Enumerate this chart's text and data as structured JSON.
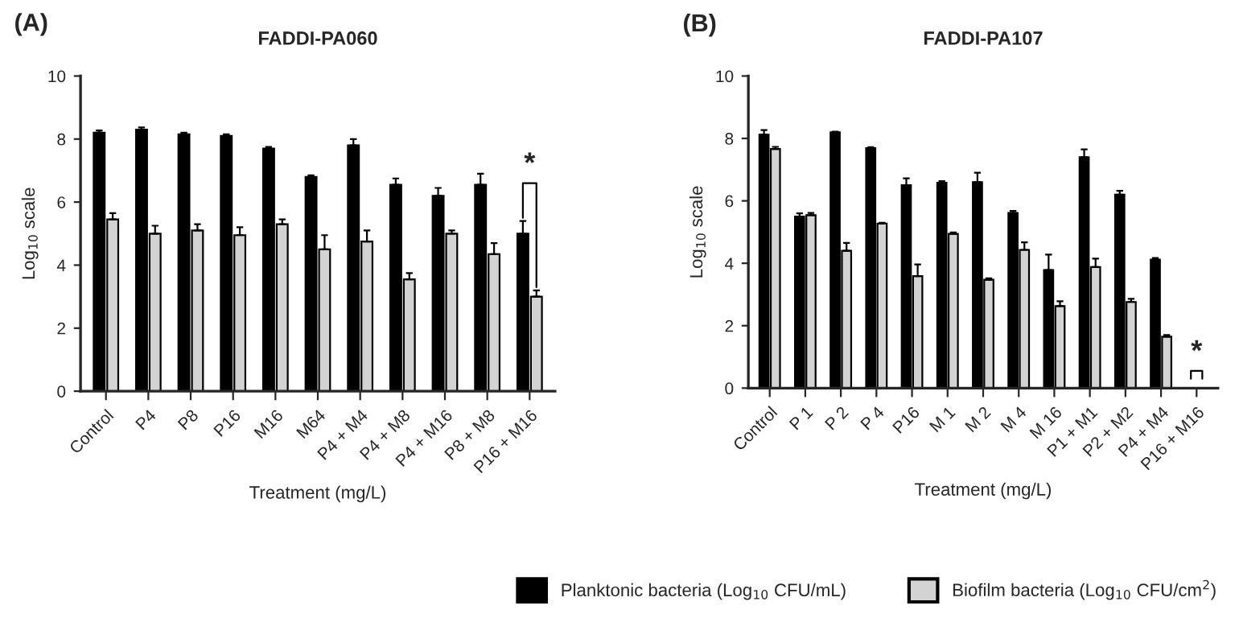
{
  "chart_data": [
    {
      "type": "bar",
      "title": "FADDI-PA060",
      "xlabel": "Treatment (mg/L)",
      "ylabel": "Log$_{10}$ scale",
      "categories": [
        "Control",
        "P4",
        "P8",
        "P16",
        "M16",
        "M64",
        "P4 + M4",
        "P4 + M8",
        "P4 + M16",
        "P8 + M8",
        "P16 + M16"
      ],
      "series": [
        {
          "name": "Planktonic bacteria (Log$_{10}$ CFU/mL)",
          "color": "#000000",
          "values": [
            8.2,
            8.3,
            8.15,
            8.1,
            7.7,
            6.8,
            7.8,
            6.55,
            6.2,
            6.55,
            5.0
          ],
          "errors": [
            [
              8.2,
              8.27
            ],
            [
              8.3,
              8.37
            ],
            [
              8.15,
              8.2
            ],
            [
              8.1,
              8.15
            ],
            [
              7.7,
              7.75
            ],
            [
              6.8,
              6.85
            ],
            [
              7.8,
              8.0
            ],
            [
              6.55,
              6.75
            ],
            [
              6.2,
              6.45
            ],
            [
              6.55,
              6.9
            ],
            [
              5.0,
              5.4
            ]
          ]
        },
        {
          "name": "Biofilm bacteria (Log$_{10}$ CFU/cm$^{2}$)",
          "color": "#d3d3d3",
          "values": [
            5.45,
            5.0,
            5.1,
            4.95,
            5.3,
            4.5,
            4.75,
            3.55,
            5.0,
            4.35,
            3.0
          ],
          "errors": [
            [
              5.45,
              5.65
            ],
            [
              5.0,
              5.25
            ],
            [
              5.1,
              5.3
            ],
            [
              4.95,
              5.2
            ],
            [
              5.3,
              5.45
            ],
            [
              4.5,
              4.95
            ],
            [
              4.75,
              5.1
            ],
            [
              3.55,
              3.75
            ],
            [
              5.0,
              5.1
            ],
            [
              4.35,
              4.7
            ],
            [
              3.0,
              3.2
            ]
          ]
        }
      ],
      "ylim": [
        0,
        10
      ],
      "yticks": [
        0,
        2,
        4,
        6,
        8,
        10
      ],
      "grid": false,
      "legend": "bottom",
      "annotations": [
        "(A)",
        "*"
      ]
    },
    {
      "type": "bar",
      "title": "FADDI-PA107",
      "xlabel": "Treatment (mg/L)",
      "ylabel": "Log$_{10}$ scale",
      "categories": [
        "Control",
        "P 1",
        "P 2",
        "P 4",
        "P16",
        "M 1",
        "M 2",
        "M 4",
        "M 16",
        "P1 + M1",
        "P2 + M2",
        "P4 + M4",
        "P16 + M16"
      ],
      "series": [
        {
          "color": "#000000",
          "values": [
            8.12,
            5.5,
            8.2,
            7.69,
            6.5,
            6.58,
            6.6,
            5.61,
            3.78,
            7.4,
            6.2,
            4.12,
            0
          ],
          "errors": [
            [
              8.12,
              8.27
            ],
            [
              5.5,
              5.6
            ],
            [
              8.2,
              8.22
            ],
            [
              7.69,
              7.72
            ],
            [
              6.5,
              6.72
            ],
            [
              6.58,
              6.63
            ],
            [
              6.6,
              6.9
            ],
            [
              5.61,
              5.68
            ],
            [
              3.78,
              4.28
            ],
            [
              7.4,
              7.65
            ],
            [
              6.2,
              6.32
            ],
            [
              4.12,
              4.17
            ],
            null
          ]
        },
        {
          "color": "#d3d3d3",
          "values": [
            7.66,
            5.54,
            4.4,
            5.27,
            3.59,
            4.94,
            3.47,
            4.43,
            2.63,
            3.88,
            2.76,
            1.65,
            0
          ],
          "errors": [
            [
              7.66,
              7.73
            ],
            [
              5.54,
              5.61
            ],
            [
              4.4,
              4.65
            ],
            [
              5.27,
              5.3
            ],
            [
              3.59,
              3.96
            ],
            [
              4.94,
              4.99
            ],
            [
              3.47,
              3.52
            ],
            [
              4.43,
              4.67
            ],
            [
              2.63,
              2.78
            ],
            [
              3.88,
              4.15
            ],
            [
              2.76,
              2.86
            ],
            [
              1.65,
              1.7
            ],
            null
          ]
        }
      ],
      "ylim": [
        0,
        10
      ],
      "yticks": [
        0,
        2,
        4,
        6,
        8,
        10
      ],
      "grid": false,
      "annotations": [
        "(B)",
        "*"
      ]
    }
  ]
}
